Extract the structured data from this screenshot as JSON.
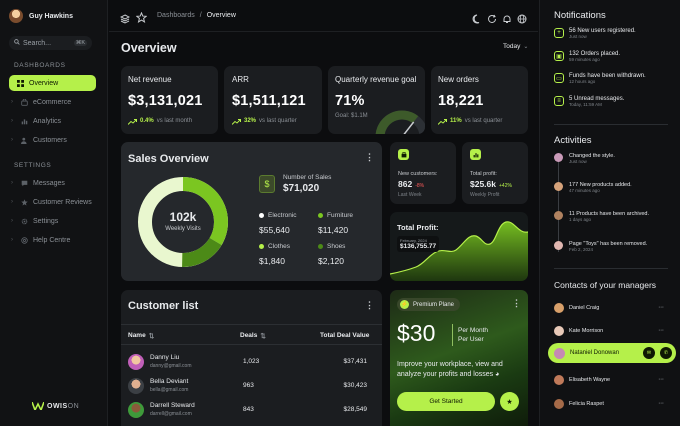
{
  "sidebar": {
    "user_name": "Guy Hawkins",
    "search_placeholder": "Search...",
    "search_shortcut": "⌘K",
    "section_dashboards": "DASHBOARDS",
    "section_settings": "SETTINGS",
    "items": [
      {
        "label": "Overview",
        "icon": "grid-icon",
        "active": true
      },
      {
        "label": "eCommerce",
        "icon": "bag-icon"
      },
      {
        "label": "Analytics",
        "icon": "chart-icon"
      },
      {
        "label": "Customers",
        "icon": "users-icon"
      },
      {
        "label": "Messages",
        "icon": "message-icon"
      },
      {
        "label": "Customer Reviews",
        "icon": "star-icon"
      },
      {
        "label": "Settings",
        "icon": "gear-icon"
      },
      {
        "label": "Help Centre",
        "icon": "help-icon"
      }
    ],
    "logo_text": "OWIS",
    "logo_suffix": "ON"
  },
  "topbar": {
    "breadcrumb_root": "Dashboards",
    "breadcrumb_sep": "/",
    "breadcrumb_current": "Overview"
  },
  "page": {
    "title": "Overview",
    "period": "Today"
  },
  "kpis": [
    {
      "title": "Net revenue",
      "value": "$3,131,021",
      "change": "0.4%",
      "note": "vs last month"
    },
    {
      "title": "ARR",
      "value": "$1,511,121",
      "change": "32%",
      "note": "vs last quarter"
    },
    {
      "title": "Quarterly revenue goal",
      "value": "71%",
      "goal": "Goal: $1.1M",
      "gauge_fraction": 0.71
    },
    {
      "title": "New orders",
      "value": "18,221",
      "change": "11%",
      "note": "vs last quarter"
    }
  ],
  "sales": {
    "title": "Sales Overview",
    "donut_value": "102k",
    "donut_label": "Weekly Visits",
    "number_label": "Number of Sales",
    "number_value": "$71,020",
    "categories": [
      {
        "name": "Electronic",
        "value": "$55,640",
        "color": "#ffffff"
      },
      {
        "name": "Furniture",
        "value": "$11,420",
        "color": "#7bc621"
      },
      {
        "name": "Clothes",
        "value": "$1,840",
        "color": "#b5f04a"
      },
      {
        "name": "Shoes",
        "value": "$2,120",
        "color": "#4c8a17"
      }
    ]
  },
  "mini": [
    {
      "label": "New customers:",
      "value": "862",
      "change": "-8%",
      "period": "Last Week"
    },
    {
      "label": "Total profit:",
      "value": "$25.6k",
      "change": "+42%",
      "period": "Weekly Profit"
    }
  ],
  "profit": {
    "title": "Total Profit:",
    "tooltip_date": "February, 2024",
    "tooltip_value": "$136,755.77"
  },
  "customers": {
    "title": "Customer list",
    "headers": [
      "Name",
      "Deals",
      "Total Deal Value"
    ],
    "rows": [
      {
        "name": "Danny Liu",
        "email": "danny@gmail.com",
        "deals": "1,023",
        "value": "$37,431"
      },
      {
        "name": "Bella Deviant",
        "email": "bella@gmail.com",
        "deals": "963",
        "value": "$30,423"
      },
      {
        "name": "Darrell Steward",
        "email": "darrell@gmail.com",
        "deals": "843",
        "value": "$28,549"
      }
    ]
  },
  "promo": {
    "badge": "Premium Plane",
    "price": "$30",
    "per1": "Per Month",
    "per2": "Per User",
    "text": "Improve your workplace, view and analyze your profits and losses",
    "cta": "Get Started"
  },
  "notifications": {
    "title": "Notifications",
    "items": [
      {
        "title": "56 New users registered.",
        "time": "Just now"
      },
      {
        "title": "132 Orders placed.",
        "time": "59 minutes ago"
      },
      {
        "title": "Funds have been withdrawn.",
        "time": "12 hours ago"
      },
      {
        "title": "5 Unread messages.",
        "time": "Today, 11:59 AM"
      }
    ]
  },
  "activities": {
    "title": "Activities",
    "items": [
      {
        "title": "Changed the style.",
        "time": "Just now"
      },
      {
        "title": "177 New products added.",
        "time": "47 minutes ago"
      },
      {
        "title": "11 Products have been archived.",
        "time": "1 days ago"
      },
      {
        "title": "Page \"Toys\" has been removed.",
        "time": "Feb 2, 2024"
      }
    ]
  },
  "contacts": {
    "title": "Contacts of your managers",
    "items": [
      {
        "name": "Daniel Craig"
      },
      {
        "name": "Kate Morrison"
      },
      {
        "name": "Nataniel Donowan",
        "active": true
      },
      {
        "name": "Elisabeth Wayne"
      },
      {
        "name": "Felicia Raspet"
      }
    ]
  }
}
